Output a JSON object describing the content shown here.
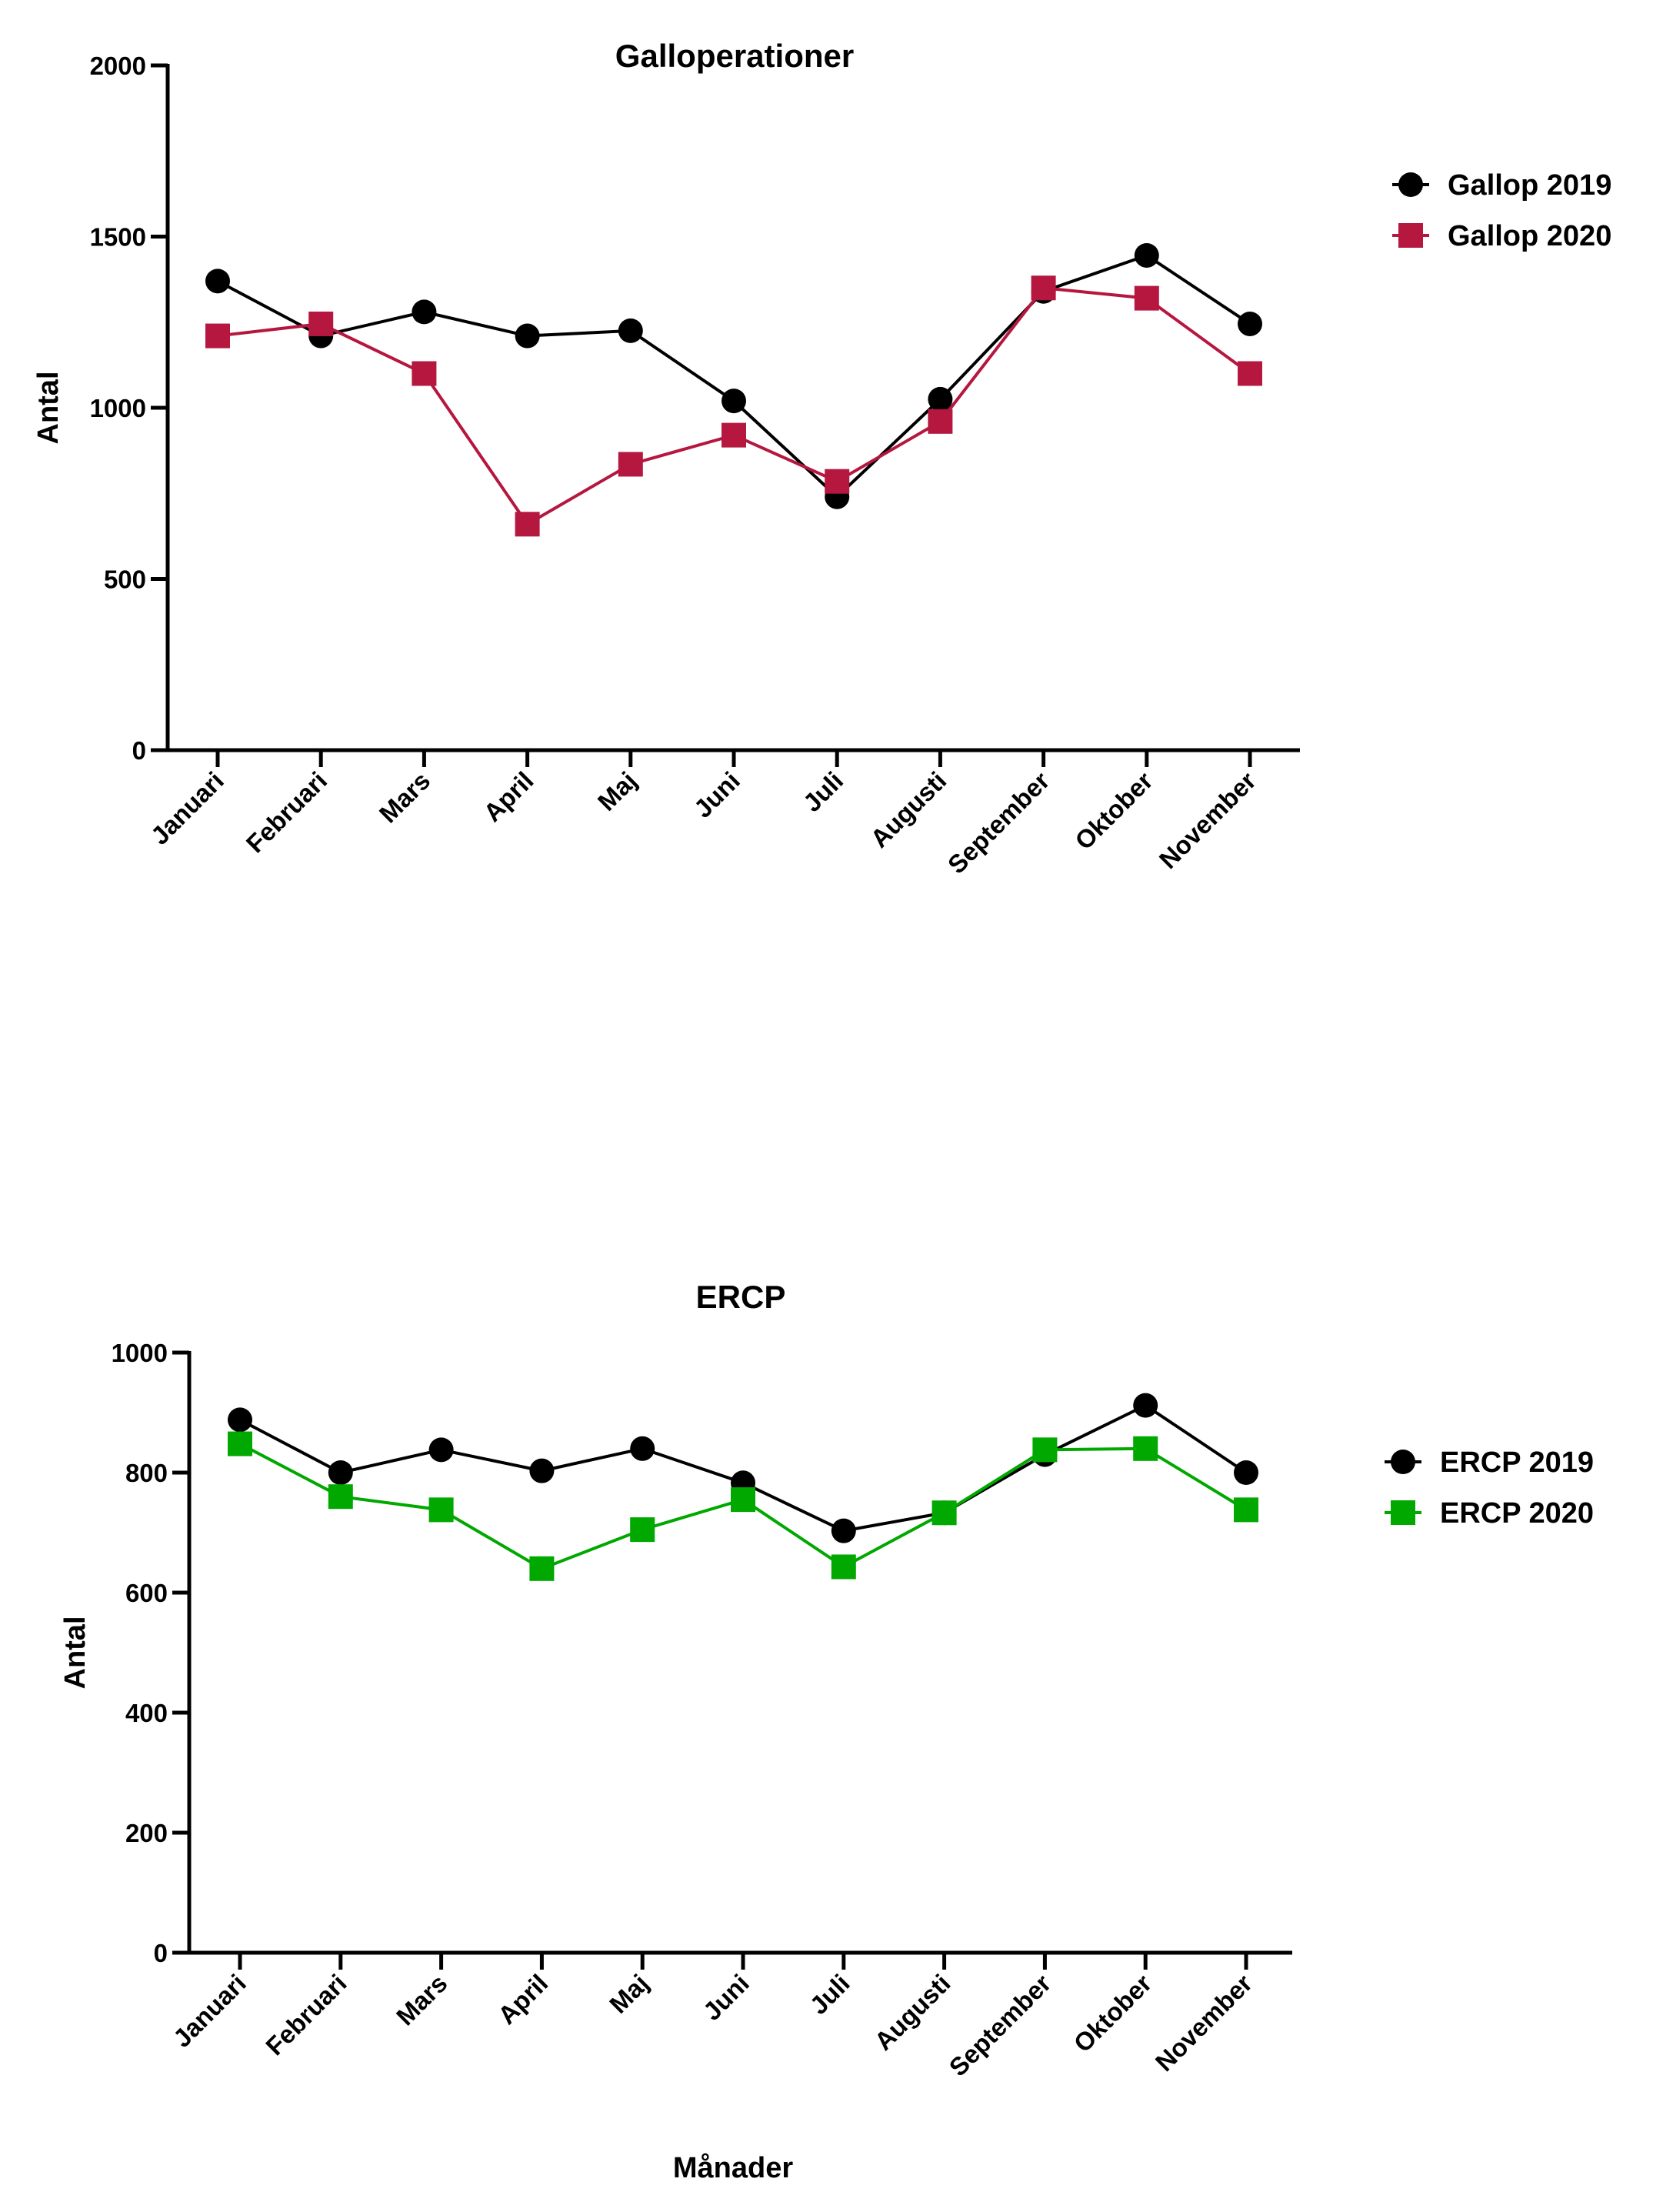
{
  "chart_data": [
    {
      "type": "line",
      "title": "Galloperationer",
      "xlabel": "",
      "ylabel": "Antal",
      "ylim": [
        0,
        2000
      ],
      "yticks": [
        "0",
        "500",
        "1000",
        "1500",
        "2000"
      ],
      "grid": false,
      "legend": "right",
      "categories": [
        "Januari",
        "Februari",
        "Mars",
        "April",
        "Maj",
        "Juni",
        "Juli",
        "Augusti",
        "September",
        "Oktober",
        "November"
      ],
      "series": [
        {
          "name": "Gallop 2019",
          "marker": "circle",
          "color": "#000000",
          "values": [
            1370,
            1210,
            1280,
            1210,
            1225,
            1020,
            740,
            1025,
            1340,
            1445,
            1245
          ]
        },
        {
          "name": "Gallop 2020",
          "marker": "square",
          "color": "#b5173f",
          "values": [
            1210,
            1245,
            1100,
            660,
            835,
            920,
            785,
            960,
            1350,
            1320,
            1100
          ]
        }
      ]
    },
    {
      "type": "line",
      "title": "ERCP",
      "xlabel": "Månader",
      "ylabel": "Antal",
      "ylim": [
        0,
        1000
      ],
      "yticks": [
        "0",
        "200",
        "400",
        "600",
        "800",
        "1000"
      ],
      "grid": false,
      "legend": "right",
      "categories": [
        "Januari",
        "Februari",
        "Mars",
        "April",
        "Maj",
        "Juni",
        "Juli",
        "Augusti",
        "September",
        "Oktober",
        "November"
      ],
      "series": [
        {
          "name": "ERCP 2019",
          "marker": "circle",
          "color": "#000000",
          "values": [
            888,
            800,
            838,
            803,
            840,
            783,
            703,
            733,
            830,
            912,
            800
          ]
        },
        {
          "name": "ERCP 2020",
          "marker": "square",
          "color": "#00a800",
          "values": [
            848,
            760,
            738,
            640,
            705,
            755,
            643,
            733,
            838,
            840,
            738
          ]
        }
      ]
    }
  ]
}
